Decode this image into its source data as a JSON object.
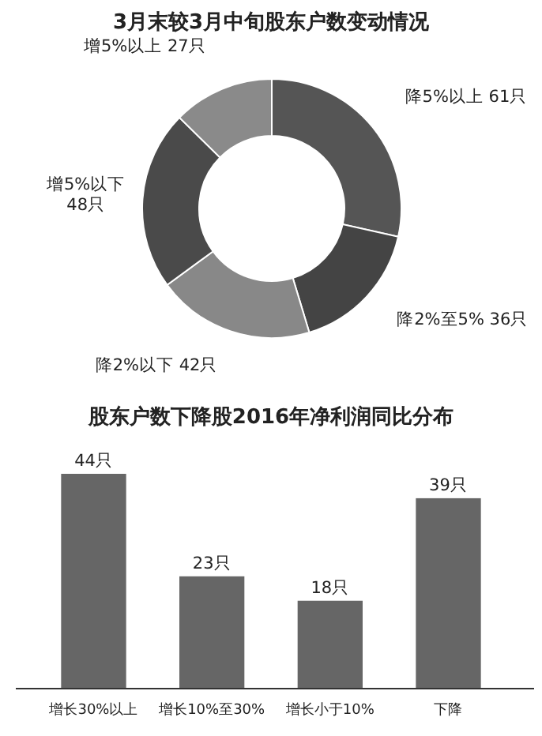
{
  "chart_data": [
    {
      "type": "donut",
      "title": "3月末较3月中旬股东户数变动情况",
      "categories": [
        "降5%以上",
        "降2%至5%",
        "降2%以下",
        "增5%以下",
        "增5%以上"
      ],
      "values": [
        61,
        36,
        42,
        48,
        27
      ],
      "value_labels": [
        "61只",
        "36只",
        "42只",
        "48只",
        "27只"
      ],
      "colors": [
        "#555555",
        "#444444",
        "#888888",
        "#4a4a4a",
        "#8a8a8a"
      ]
    },
    {
      "type": "bar",
      "title": "股东户数下降股2016年净利润同比分布",
      "categories": [
        "增长30%以上",
        "增长10%至30%",
        "增长小于10%",
        "下降"
      ],
      "values": [
        44,
        23,
        18,
        39
      ],
      "value_labels": [
        "44只",
        "23只",
        "18只",
        "39只"
      ],
      "color": "#666666"
    }
  ]
}
